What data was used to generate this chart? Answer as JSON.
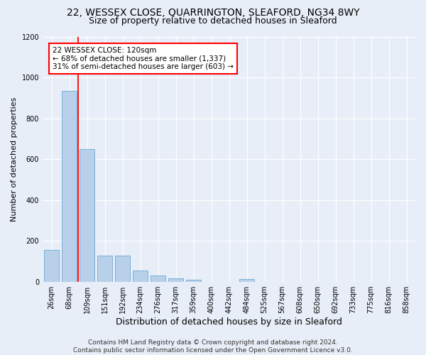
{
  "title1": "22, WESSEX CLOSE, QUARRINGTON, SLEAFORD, NG34 8WY",
  "title2": "Size of property relative to detached houses in Sleaford",
  "xlabel": "Distribution of detached houses by size in Sleaford",
  "ylabel": "Number of detached properties",
  "footnote": "Contains HM Land Registry data © Crown copyright and database right 2024.\nContains public sector information licensed under the Open Government Licence v3.0.",
  "bar_labels": [
    "26sqm",
    "68sqm",
    "109sqm",
    "151sqm",
    "192sqm",
    "234sqm",
    "276sqm",
    "317sqm",
    "359sqm",
    "400sqm",
    "442sqm",
    "484sqm",
    "525sqm",
    "567sqm",
    "608sqm",
    "650sqm",
    "692sqm",
    "733sqm",
    "775sqm",
    "816sqm",
    "858sqm"
  ],
  "bar_values": [
    158,
    935,
    650,
    130,
    130,
    57,
    30,
    17,
    10,
    0,
    0,
    13,
    0,
    0,
    0,
    0,
    0,
    0,
    0,
    0,
    0
  ],
  "bar_color": "#b8d0ea",
  "bar_edgecolor": "#6aaad4",
  "annotation_box_text": "22 WESSEX CLOSE: 120sqm\n← 68% of detached houses are smaller (1,337)\n31% of semi-detached houses are larger (603) →",
  "redline_x": 1.5,
  "ylim": [
    0,
    1200
  ],
  "yticks": [
    0,
    200,
    400,
    600,
    800,
    1000,
    1200
  ],
  "bg_color": "#e8eef8",
  "plot_bg_color": "#e8eef8",
  "grid_color": "#ffffff",
  "title1_fontsize": 10,
  "title2_fontsize": 9,
  "xlabel_fontsize": 9,
  "ylabel_fontsize": 8,
  "tick_fontsize": 7,
  "footnote_fontsize": 6.5
}
